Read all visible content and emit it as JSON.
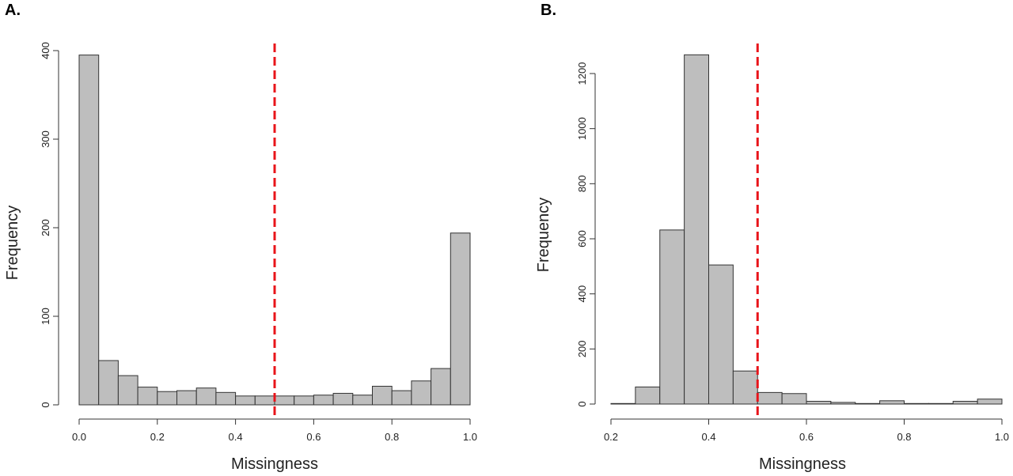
{
  "colors": {
    "bar_fill": "#bebebe",
    "bar_stroke": "#333333",
    "cutoff_line": "#e8141a"
  },
  "chart_data": [
    {
      "type": "bar",
      "panel_label": "A.",
      "xlabel": "Missingness",
      "ylabel": "Frequency",
      "xlim": [
        0.0,
        1.0
      ],
      "ylim": [
        0,
        400
      ],
      "bin_width": 0.05,
      "bin_starts": [
        0.0,
        0.05,
        0.1,
        0.15,
        0.2,
        0.25,
        0.3,
        0.35,
        0.4,
        0.45,
        0.5,
        0.55,
        0.6,
        0.65,
        0.7,
        0.75,
        0.8,
        0.85,
        0.9,
        0.95
      ],
      "values": [
        395,
        50,
        33,
        20,
        15,
        16,
        19,
        14,
        10,
        10,
        10,
        10,
        11,
        13,
        11,
        21,
        16,
        27,
        41,
        194
      ],
      "x_ticks": [
        "0.0",
        "0.2",
        "0.4",
        "0.6",
        "0.8",
        "1.0"
      ],
      "y_ticks": [
        "0",
        "100",
        "200",
        "300",
        "400"
      ],
      "cutoff": 0.5
    },
    {
      "type": "bar",
      "panel_label": "B.",
      "xlabel": "Missingness",
      "ylabel": "Frequency",
      "xlim": [
        0.2,
        1.0
      ],
      "ylim": [
        0,
        1200
      ],
      "bin_width": 0.05,
      "bin_starts": [
        0.2,
        0.25,
        0.3,
        0.35,
        0.4,
        0.45,
        0.5,
        0.55,
        0.6,
        0.65,
        0.7,
        0.75,
        0.8,
        0.85,
        0.9,
        0.95
      ],
      "values": [
        2,
        62,
        632,
        1268,
        505,
        120,
        42,
        38,
        10,
        6,
        2,
        12,
        2,
        2,
        10,
        18
      ],
      "x_ticks": [
        "0.2",
        "0.4",
        "0.6",
        "0.8",
        "1.0"
      ],
      "y_ticks": [
        "0",
        "200",
        "400",
        "600",
        "800",
        "1000",
        "1200"
      ],
      "cutoff": 0.5
    }
  ]
}
